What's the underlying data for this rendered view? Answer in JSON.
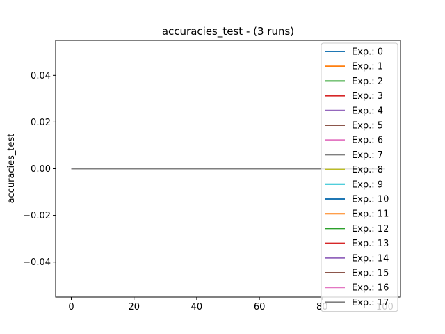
{
  "chart_data": {
    "type": "line",
    "title": "accuracies_test - (3 runs)",
    "xlabel": "",
    "ylabel": "accuracies_test",
    "xlim": [
      -5,
      105
    ],
    "ylim": [
      -0.055,
      0.055
    ],
    "xticks": [
      0,
      20,
      40,
      60,
      80,
      100
    ],
    "yticks": [
      -0.04,
      -0.02,
      0.0,
      0.02,
      0.04
    ],
    "xtick_labels": [
      "0",
      "20",
      "40",
      "60",
      "80",
      "100"
    ],
    "ytick_labels": [
      "−0.04",
      "−0.02",
      "0.00",
      "0.02",
      "0.04"
    ],
    "grid": false,
    "legend_position": "top-right",
    "x": [
      0,
      100
    ],
    "series": [
      {
        "name": "Exp.: 0",
        "color": "#1f77b4",
        "values": [
          0,
          0
        ]
      },
      {
        "name": "Exp.: 1",
        "color": "#ff7f0e",
        "values": [
          0,
          0
        ]
      },
      {
        "name": "Exp.: 2",
        "color": "#2ca02c",
        "values": [
          0,
          0
        ]
      },
      {
        "name": "Exp.: 3",
        "color": "#d62728",
        "values": [
          0,
          0
        ]
      },
      {
        "name": "Exp.: 4",
        "color": "#9467bd",
        "values": [
          0,
          0
        ]
      },
      {
        "name": "Exp.: 5",
        "color": "#8c564b",
        "values": [
          0,
          0
        ]
      },
      {
        "name": "Exp.: 6",
        "color": "#e377c2",
        "values": [
          0,
          0
        ]
      },
      {
        "name": "Exp.: 7",
        "color": "#7f7f7f",
        "values": [
          0,
          0
        ]
      },
      {
        "name": "Exp.: 8",
        "color": "#bcbd22",
        "values": [
          0,
          0
        ]
      },
      {
        "name": "Exp.: 9",
        "color": "#17becf",
        "values": [
          0,
          0
        ]
      },
      {
        "name": "Exp.: 10",
        "color": "#1f77b4",
        "values": [
          0,
          0
        ]
      },
      {
        "name": "Exp.: 11",
        "color": "#ff7f0e",
        "values": [
          0,
          0
        ]
      },
      {
        "name": "Exp.: 12",
        "color": "#2ca02c",
        "values": [
          0,
          0
        ]
      },
      {
        "name": "Exp.: 13",
        "color": "#d62728",
        "values": [
          0,
          0
        ]
      },
      {
        "name": "Exp.: 14",
        "color": "#9467bd",
        "values": [
          0,
          0
        ]
      },
      {
        "name": "Exp.: 15",
        "color": "#8c564b",
        "values": [
          0,
          0
        ]
      },
      {
        "name": "Exp.: 16",
        "color": "#e377c2",
        "values": [
          0,
          0
        ]
      },
      {
        "name": "Exp.: 17",
        "color": "#7f7f7f",
        "values": [
          0,
          0
        ]
      }
    ]
  }
}
